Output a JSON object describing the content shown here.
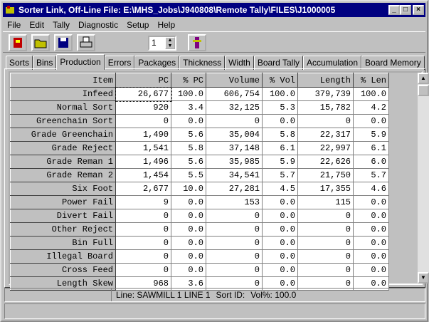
{
  "window": {
    "title": "Sorter Link, Off-Line File: E:\\MHS_Jobs\\J940808\\Remote Tally\\FILES\\J1000005"
  },
  "menu": [
    "File",
    "Edit",
    "Tally",
    "Diagnostic",
    "Setup",
    "Help"
  ],
  "toolbar": {
    "spinner": "1"
  },
  "tabs": [
    "Sorts",
    "Bins",
    "Production",
    "Errors",
    "Packages",
    "Thickness",
    "Width",
    "Board Tally",
    "Accumulation",
    "Board Memory"
  ],
  "table": {
    "columns": [
      "Item",
      "PC",
      "% PC",
      "Volume",
      "% Vol",
      "Length",
      "% Len"
    ],
    "rows": [
      [
        "Infeed",
        "26,677",
        "100.0",
        "606,754",
        "100.0",
        "379,739",
        "100.0"
      ],
      [
        "Normal Sort",
        "920",
        "3.4",
        "32,125",
        "5.3",
        "15,782",
        "4.2"
      ],
      [
        "Greenchain Sort",
        "0",
        "0.0",
        "0",
        "0.0",
        "0",
        "0.0"
      ],
      [
        "Grade Greenchain",
        "1,490",
        "5.6",
        "35,004",
        "5.8",
        "22,317",
        "5.9"
      ],
      [
        "Grade Reject",
        "1,541",
        "5.8",
        "37,148",
        "6.1",
        "22,997",
        "6.1"
      ],
      [
        "Grade Reman 1",
        "1,496",
        "5.6",
        "35,985",
        "5.9",
        "22,626",
        "6.0"
      ],
      [
        "Grade Reman 2",
        "1,454",
        "5.5",
        "34,541",
        "5.7",
        "21,750",
        "5.7"
      ],
      [
        "Six Foot",
        "2,677",
        "10.0",
        "27,281",
        "4.5",
        "17,355",
        "4.6"
      ],
      [
        "Power Fail",
        "9",
        "0.0",
        "153",
        "0.0",
        "115",
        "0.0"
      ],
      [
        "Divert Fail",
        "0",
        "0.0",
        "0",
        "0.0",
        "0",
        "0.0"
      ],
      [
        "Other Reject",
        "0",
        "0.0",
        "0",
        "0.0",
        "0",
        "0.0"
      ],
      [
        "Bin Full",
        "0",
        "0.0",
        "0",
        "0.0",
        "0",
        "0.0"
      ],
      [
        "Illegal Board",
        "0",
        "0.0",
        "0",
        "0.0",
        "0",
        "0.0"
      ],
      [
        "Cross Feed",
        "0",
        "0.0",
        "0",
        "0.0",
        "0",
        "0.0"
      ],
      [
        "Length Skew",
        "968",
        "3.6",
        "0",
        "0.0",
        "0",
        "0.0"
      ]
    ]
  },
  "status": [
    "Line: SAWMILL 1 LINE 1",
    "Sort ID:",
    "Vol%: 100.0"
  ]
}
